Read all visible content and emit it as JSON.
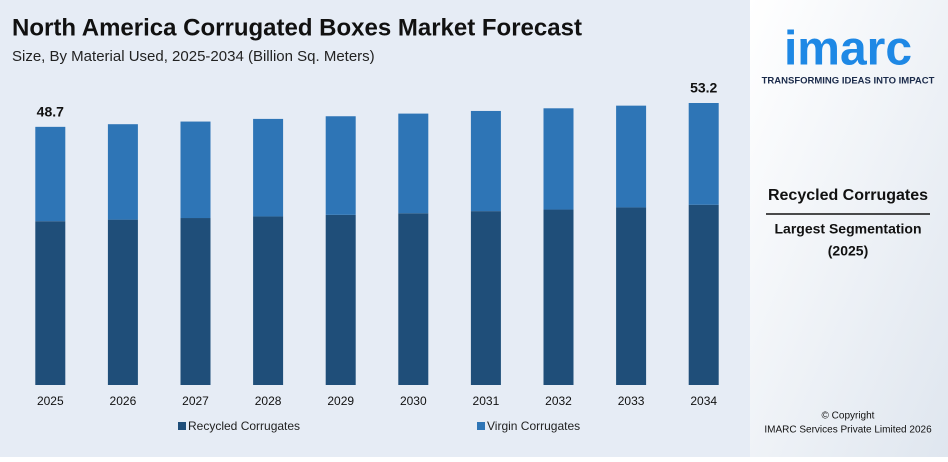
{
  "chart_data": {
    "type": "stacked-bar",
    "title": "North America Corrugated Boxes Market Forecast",
    "subtitle": "Size, By Material Used, 2025-2034 (Billion Sq. Meters)",
    "categories": [
      "2025",
      "2026",
      "2027",
      "2028",
      "2029",
      "2030",
      "2031",
      "2032",
      "2033",
      "2034"
    ],
    "series": [
      {
        "name": "Recycled Corrugates",
        "color": "#1f4e79",
        "values": [
          30.9,
          31.2,
          31.5,
          31.8,
          32.1,
          32.4,
          32.8,
          33.1,
          33.5,
          34.0
        ]
      },
      {
        "name": "Virgin Corrugates",
        "color": "#2e75b6",
        "values": [
          17.8,
          18.0,
          18.2,
          18.4,
          18.6,
          18.8,
          18.9,
          19.1,
          19.2,
          19.2
        ]
      }
    ],
    "totals": [
      48.7,
      null,
      null,
      null,
      null,
      null,
      null,
      null,
      null,
      53.2
    ]
  },
  "panel": {
    "logo": "imarc",
    "tagline": "TRANSFORMING IDEAS INTO IMPACT",
    "highlight": "Recycled Corrugates",
    "caption_line1": "Largest Segmentation",
    "caption_line2": "(2025)",
    "copyright_line1": "© Copyright",
    "copyright_line2": "IMARC Services Private Limited 2026"
  }
}
